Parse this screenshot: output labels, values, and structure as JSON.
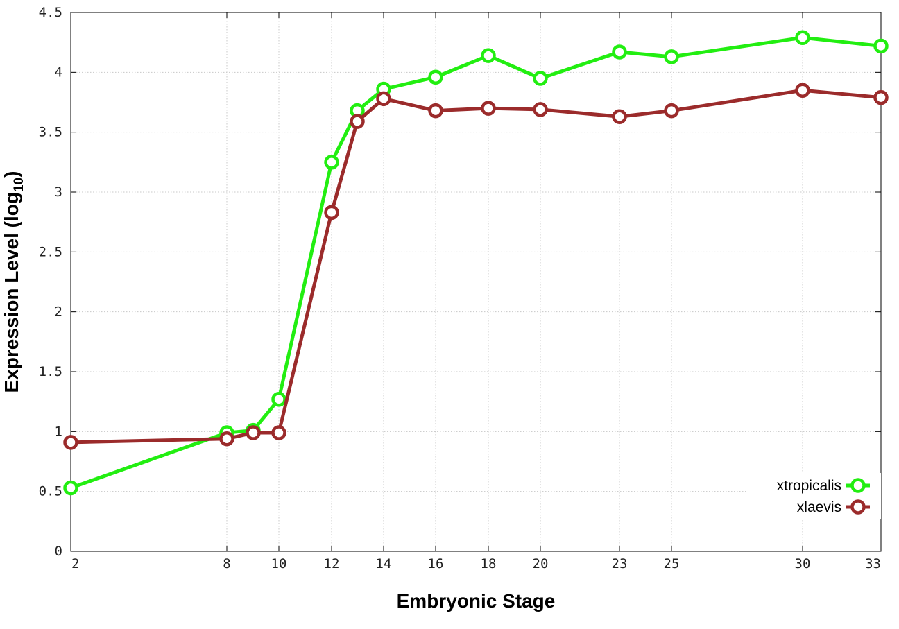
{
  "chart_data": {
    "type": "line",
    "title": "",
    "xlabel": "Embryonic Stage",
    "ylabel": "Expression Level (log",
    "ylabel_subscript": "10",
    "ylabel_suffix": ")",
    "x_scale": "categorical-stage-spacing",
    "x": [
      2,
      8,
      9,
      10,
      12,
      13,
      14,
      16,
      18,
      20,
      23,
      25,
      30,
      33
    ],
    "x_tick_labels": [
      "2",
      "8",
      "10",
      "12",
      "14",
      "16",
      "18",
      "20",
      "23",
      "25",
      "30",
      "33"
    ],
    "x_tick_values": [
      2,
      8,
      10,
      12,
      14,
      16,
      18,
      20,
      23,
      25,
      30,
      33
    ],
    "xlim": [
      2,
      33
    ],
    "ylim": [
      0,
      4.5
    ],
    "y_tick_values": [
      0,
      0.5,
      1,
      1.5,
      2,
      2.5,
      3,
      3.5,
      4,
      4.5
    ],
    "y_tick_labels": [
      "0",
      "0.5",
      "1",
      "1.5",
      "2",
      "2.5",
      "3",
      "3.5",
      "4",
      "4.5"
    ],
    "grid": true,
    "legend_position": "bottom-right",
    "series": [
      {
        "name": "xtropicalis",
        "color": "#22ee11",
        "values": [
          0.53,
          0.99,
          1.01,
          1.27,
          3.25,
          3.68,
          3.86,
          3.96,
          4.14,
          3.95,
          4.17,
          4.13,
          4.29,
          4.22
        ]
      },
      {
        "name": "xlaevis",
        "color": "#9b2b2b",
        "values": [
          0.91,
          0.94,
          0.99,
          0.99,
          2.83,
          3.59,
          3.78,
          3.68,
          3.7,
          3.69,
          3.63,
          3.68,
          3.85,
          3.79
        ]
      }
    ]
  }
}
